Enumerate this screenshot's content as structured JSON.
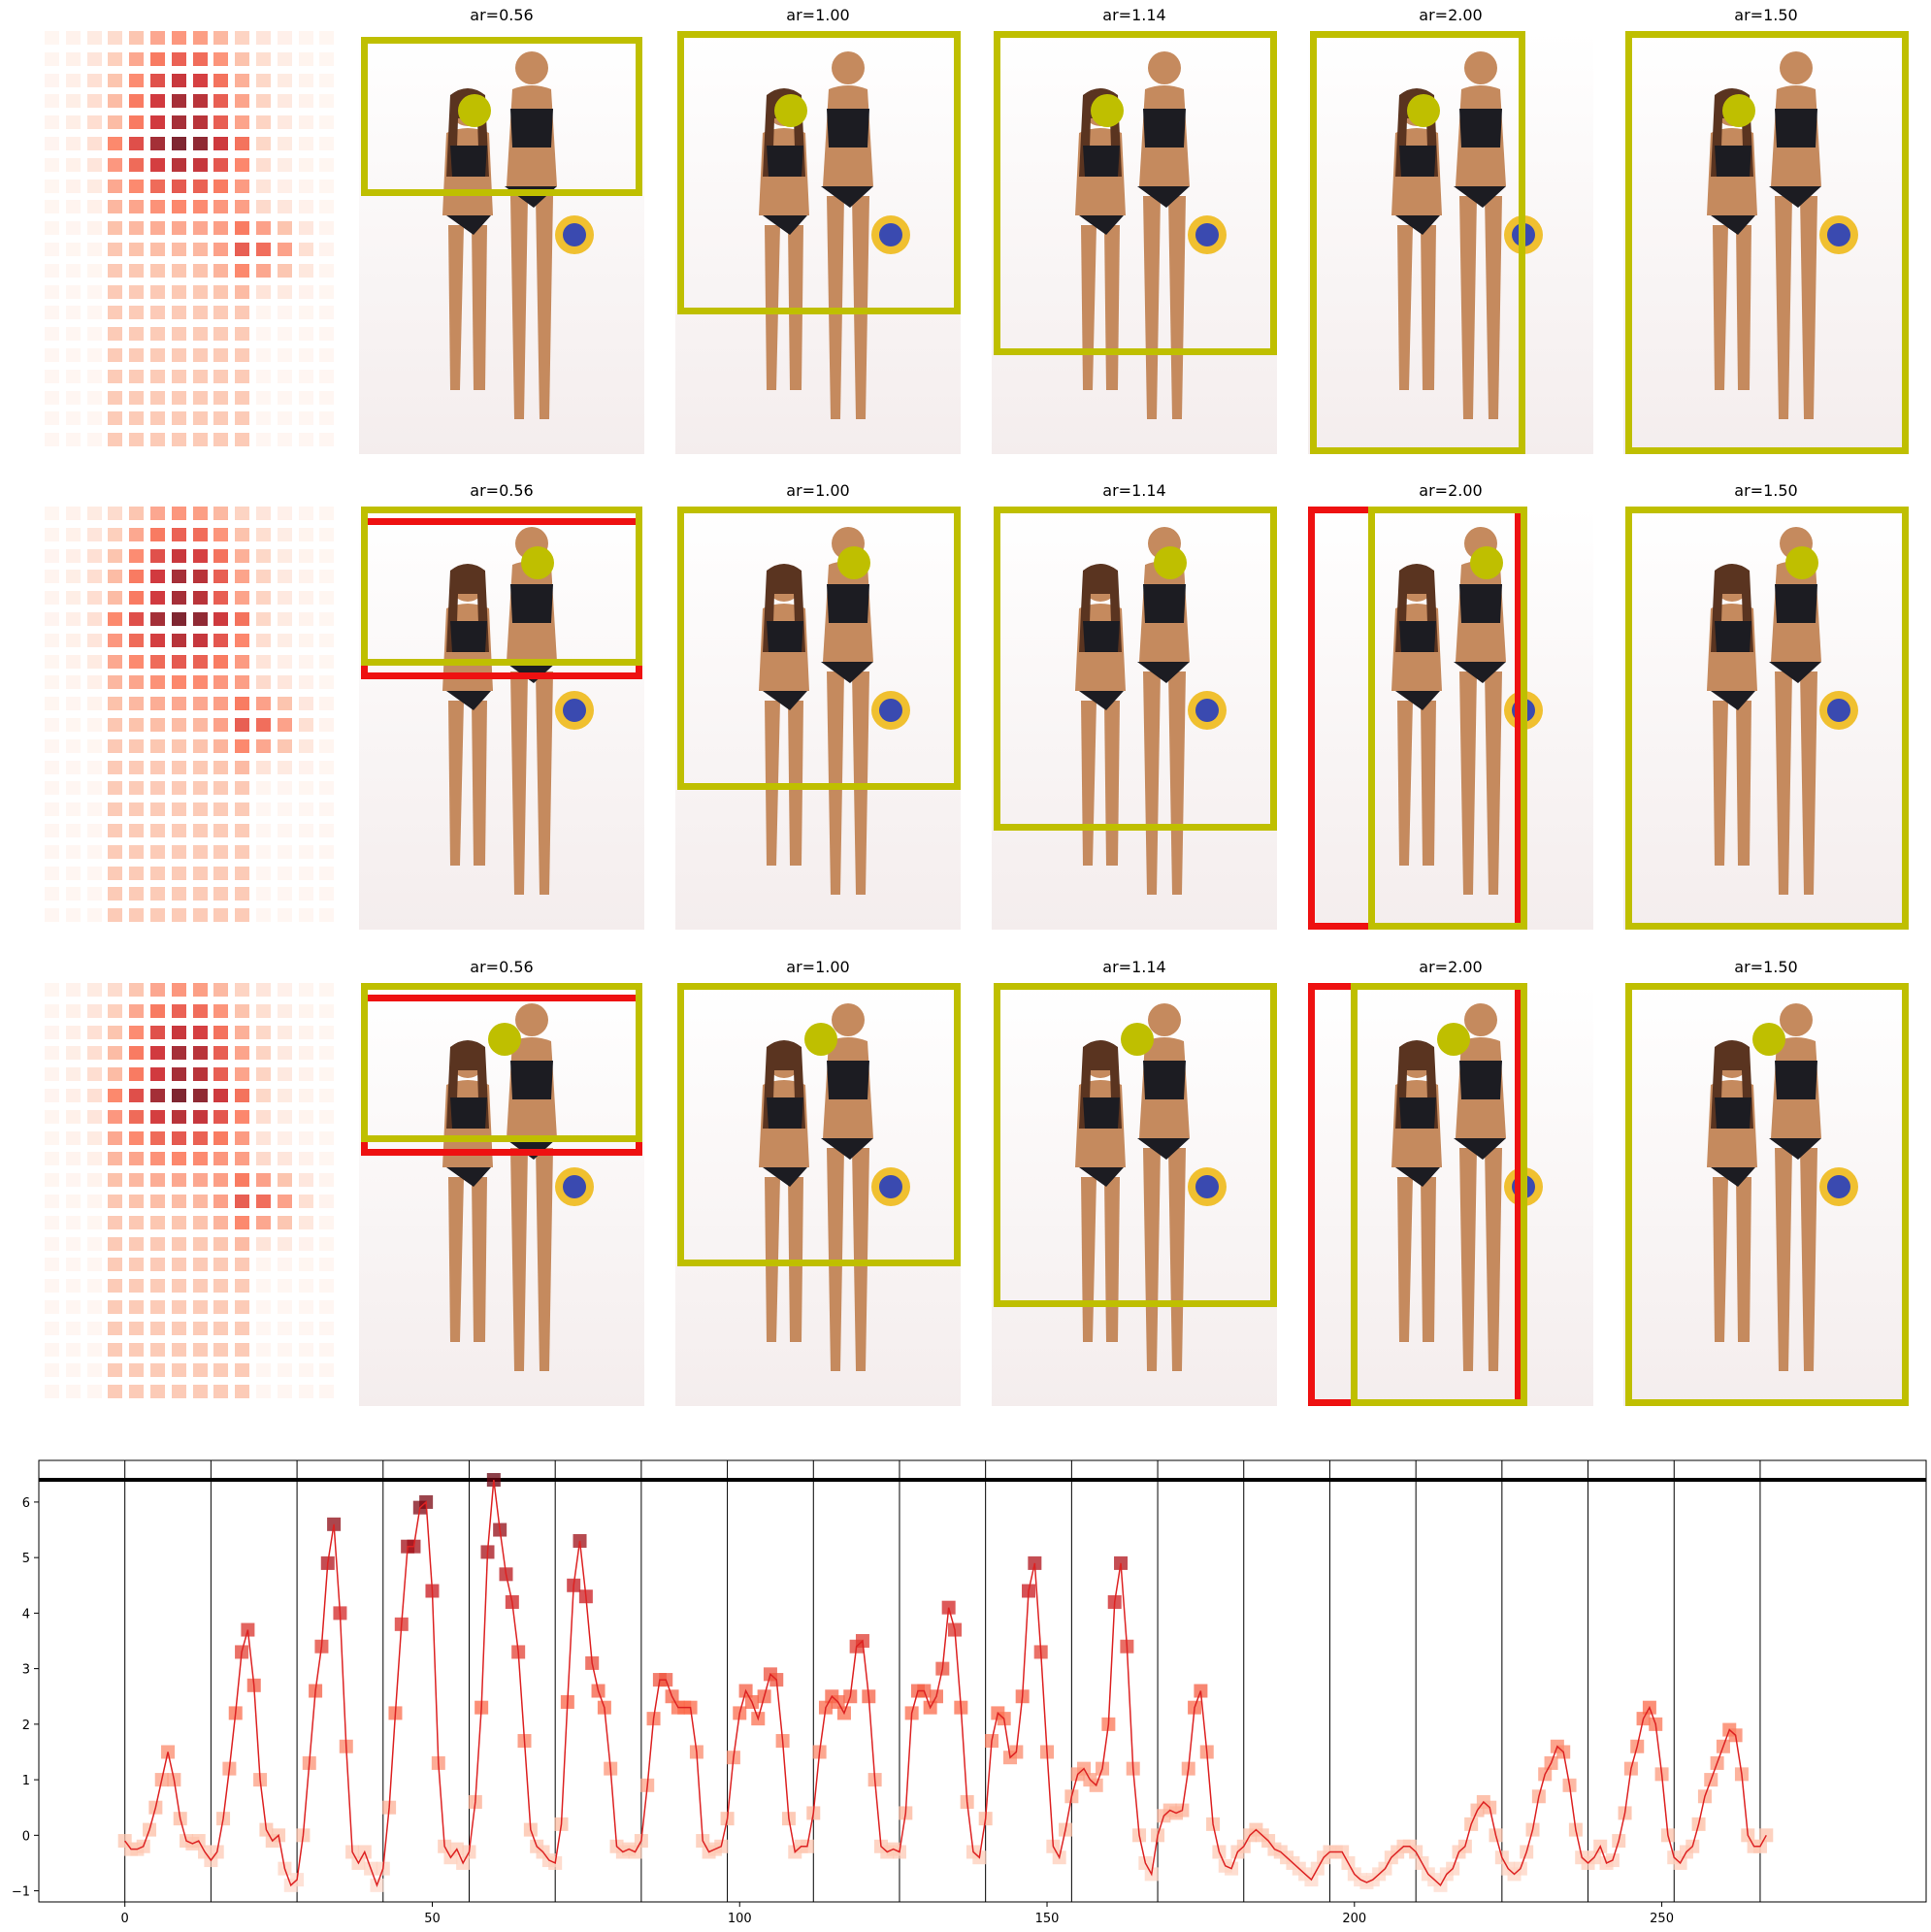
{
  "panel_titles": [
    [
      "ar=0.56",
      "ar=1.00",
      "ar=1.14",
      "ar=2.00",
      "ar=1.50"
    ],
    [
      "ar=0.56",
      "ar=1.00",
      "ar=1.14",
      "ar=2.00",
      "ar=1.50"
    ],
    [
      "ar=0.56",
      "ar=1.00",
      "ar=1.14",
      "ar=2.00",
      "ar=1.50"
    ]
  ],
  "colors": {
    "crop_box": "#bfbf00",
    "crop_box_alt": "#ee1111",
    "line": "#dd2222",
    "grid": "#000000"
  },
  "chart_data": {
    "type": "line",
    "xlim": [
      -14,
      293
    ],
    "ylim": [
      -1.2,
      6.75
    ],
    "xticks": [
      0,
      50,
      100,
      150,
      200,
      250
    ],
    "yticks": [
      -1,
      0,
      1,
      2,
      3,
      4,
      5,
      6
    ],
    "vlines": [
      0,
      14,
      28,
      42,
      56,
      70,
      84,
      98,
      112,
      126,
      140,
      154,
      168,
      182,
      196,
      210,
      224,
      238,
      252,
      266
    ],
    "hline": 6.4,
    "grid": false,
    "legend": "none",
    "x_start": 0,
    "values": [
      -0.1,
      -0.25,
      -0.25,
      -0.2,
      0.1,
      0.5,
      1.0,
      1.5,
      1.0,
      0.3,
      -0.1,
      -0.15,
      -0.1,
      -0.3,
      -0.45,
      -0.3,
      0.3,
      1.2,
      2.2,
      3.3,
      3.7,
      2.7,
      1.0,
      0.1,
      -0.1,
      0.0,
      -0.6,
      -0.9,
      -0.8,
      0.0,
      1.3,
      2.6,
      3.4,
      4.9,
      5.6,
      4.0,
      1.6,
      -0.3,
      -0.5,
      -0.3,
      -0.6,
      -0.9,
      -0.6,
      0.5,
      2.2,
      3.8,
      5.2,
      5.2,
      5.9,
      6.0,
      4.4,
      1.3,
      -0.2,
      -0.4,
      -0.25,
      -0.5,
      -0.3,
      0.6,
      2.3,
      5.1,
      6.4,
      5.5,
      4.7,
      4.2,
      3.3,
      1.7,
      0.1,
      -0.2,
      -0.3,
      -0.45,
      -0.5,
      0.2,
      2.4,
      4.5,
      5.3,
      4.3,
      3.1,
      2.6,
      2.3,
      1.2,
      -0.2,
      -0.3,
      -0.25,
      -0.3,
      -0.1,
      0.9,
      2.1,
      2.8,
      2.8,
      2.5,
      2.3,
      2.3,
      2.3,
      1.5,
      -0.1,
      -0.3,
      -0.25,
      -0.2,
      0.3,
      1.4,
      2.2,
      2.6,
      2.4,
      2.1,
      2.5,
      2.9,
      2.8,
      1.7,
      0.3,
      -0.3,
      -0.2,
      -0.2,
      0.4,
      1.5,
      2.3,
      2.5,
      2.4,
      2.2,
      2.5,
      3.4,
      3.5,
      2.5,
      1.0,
      -0.2,
      -0.3,
      -0.25,
      -0.3,
      0.4,
      2.2,
      2.6,
      2.6,
      2.3,
      2.5,
      3.0,
      4.1,
      3.7,
      2.3,
      0.6,
      -0.3,
      -0.4,
      0.3,
      1.7,
      2.2,
      2.1,
      1.4,
      1.5,
      2.5,
      4.4,
      4.9,
      3.3,
      1.5,
      -0.2,
      -0.4,
      0.1,
      0.7,
      1.1,
      1.2,
      1.0,
      0.9,
      1.2,
      2.0,
      4.2,
      4.9,
      3.4,
      1.2,
      0.0,
      -0.5,
      -0.7,
      0.0,
      0.35,
      0.45,
      0.4,
      0.45,
      1.2,
      2.3,
      2.6,
      1.5,
      0.2,
      -0.3,
      -0.55,
      -0.6,
      -0.3,
      -0.2,
      0.0,
      0.1,
      0.0,
      -0.1,
      -0.25,
      -0.3,
      -0.4,
      -0.5,
      -0.6,
      -0.7,
      -0.8,
      -0.6,
      -0.4,
      -0.3,
      -0.3,
      -0.3,
      -0.5,
      -0.7,
      -0.8,
      -0.85,
      -0.8,
      -0.7,
      -0.6,
      -0.4,
      -0.3,
      -0.2,
      -0.2,
      -0.3,
      -0.5,
      -0.7,
      -0.8,
      -0.9,
      -0.7,
      -0.6,
      -0.3,
      -0.2,
      0.2,
      0.45,
      0.6,
      0.5,
      0.0,
      -0.4,
      -0.6,
      -0.7,
      -0.6,
      -0.3,
      0.1,
      0.7,
      1.1,
      1.3,
      1.6,
      1.5,
      0.9,
      0.1,
      -0.4,
      -0.5,
      -0.4,
      -0.2,
      -0.5,
      -0.45,
      -0.1,
      0.4,
      1.2,
      1.6,
      2.1,
      2.3,
      2.0,
      1.1,
      0.0,
      -0.4,
      -0.5,
      -0.3,
      -0.2,
      0.2,
      0.7,
      1.0,
      1.3,
      1.6,
      1.9,
      1.8,
      1.1,
      0.0,
      -0.2,
      -0.2,
      0.0
    ]
  }
}
